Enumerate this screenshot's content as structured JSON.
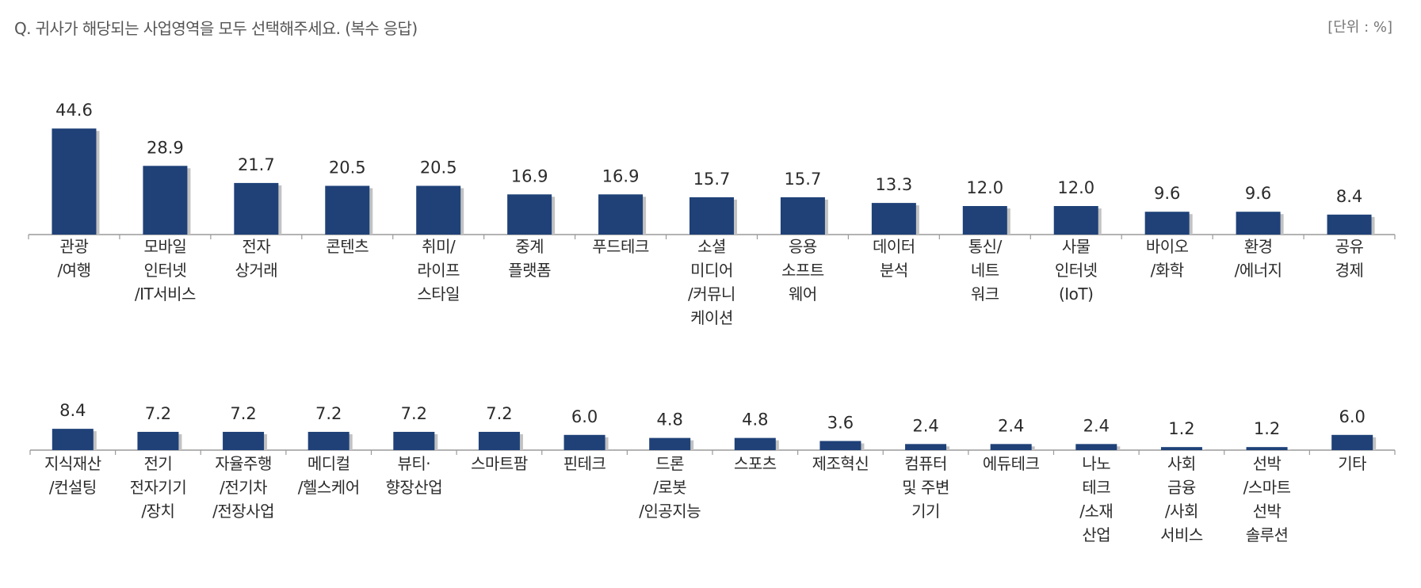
{
  "header": {
    "question": "Q. 귀사가 해당되는 사업영역을 모두 선택해주세요. (복수 응답)",
    "unit": "[단위 : %]"
  },
  "colors": {
    "bar": "#1f4178",
    "bar_shadow": "#c2c2c2",
    "axis": "#9a9a9a"
  },
  "chart_data": [
    {
      "type": "bar",
      "ylim": [
        0,
        50
      ],
      "categories": [
        "관광\n/여행",
        "모바일\n인터넷\n/IT서비스",
        "전자\n상거래",
        "콘텐츠",
        "취미/\n라이프\n스타일",
        "중계\n플랫폼",
        "푸드테크",
        "소셜\n미디어\n/커뮤니\n케이션",
        "응용\n소프트\n웨어",
        "데이터\n분석",
        "통신/\n네트\n워크",
        "사물\n인터넷\n(IoT)",
        "바이오\n/화학",
        "환경\n/에너지",
        "공유\n경제"
      ],
      "values": [
        44.6,
        28.9,
        21.7,
        20.5,
        20.5,
        16.9,
        16.9,
        15.7,
        15.7,
        13.3,
        12.0,
        12.0,
        9.6,
        9.6,
        8.4
      ],
      "value_labels": [
        "44.6",
        "28.9",
        "21.7",
        "20.5",
        "20.5",
        "16.9",
        "16.9",
        "15.7",
        "15.7",
        "13.3",
        "12.0",
        "12.0",
        "9.6",
        "9.6",
        "8.4"
      ]
    },
    {
      "type": "bar",
      "ylim": [
        0,
        50
      ],
      "categories": [
        "지식재산\n/컨설팅",
        "전기\n전자기기\n/장치",
        "자율주행\n/전기차\n/전장사업",
        "메디컬\n/헬스케어",
        "뷰티·\n향장산업",
        "스마트팜",
        "핀테크",
        "드론\n/로봇\n/인공지능",
        "스포츠",
        "제조혁신",
        "컴퓨터\n및 주변\n기기",
        "에듀테크",
        "나노\n테크\n/소재\n산업",
        "사회\n금융\n/사회\n서비스",
        "선박\n/스마트\n선박\n솔루션",
        "기타"
      ],
      "values": [
        8.4,
        7.2,
        7.2,
        7.2,
        7.2,
        7.2,
        6.0,
        4.8,
        4.8,
        3.6,
        2.4,
        2.4,
        2.4,
        1.2,
        1.2,
        6.0
      ],
      "value_labels": [
        "8.4",
        "7.2",
        "7.2",
        "7.2",
        "7.2",
        "7.2",
        "6.0",
        "4.8",
        "4.8",
        "3.6",
        "2.4",
        "2.4",
        "2.4",
        "1.2",
        "1.2",
        "6.0"
      ]
    }
  ]
}
